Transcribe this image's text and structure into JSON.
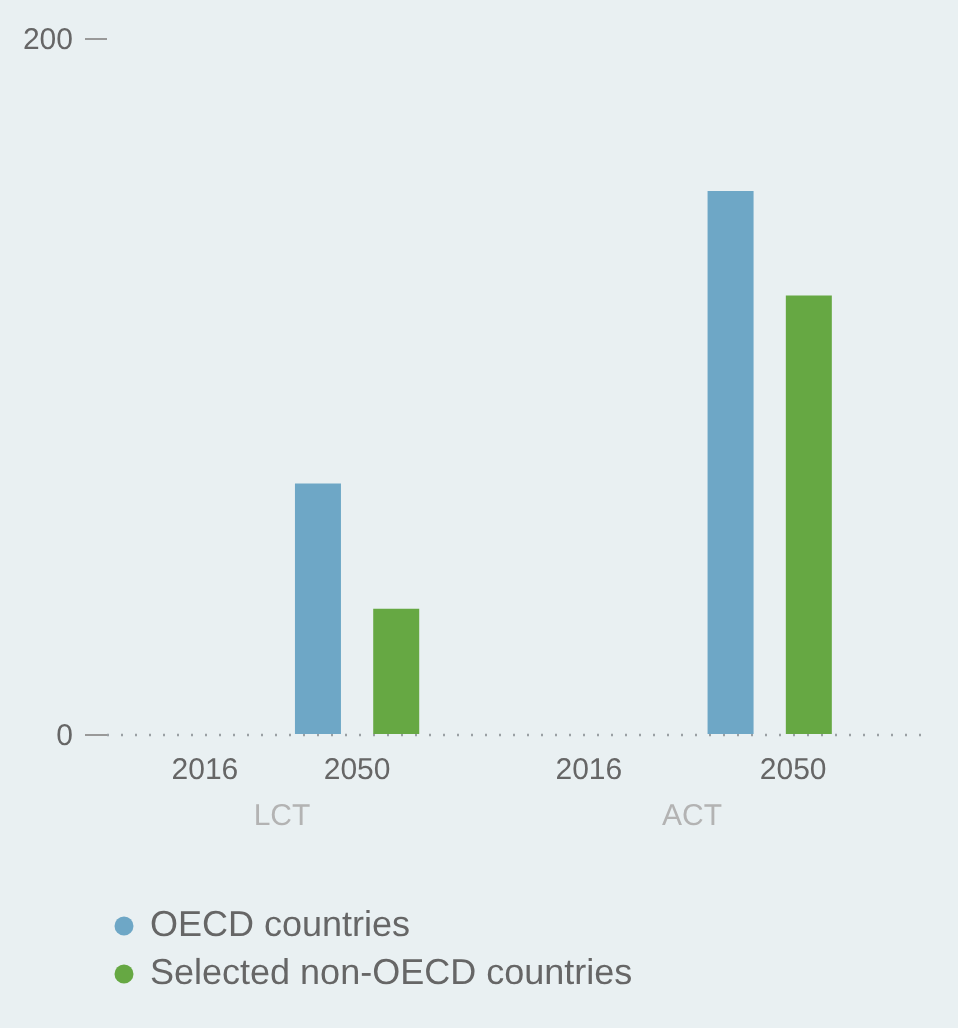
{
  "chart_data": [
    {
      "type": "bar",
      "xlabel": "LCT",
      "categories": [
        "2016",
        "2050"
      ],
      "ylim": [
        0,
        200
      ],
      "yticks": [
        0,
        200
      ],
      "grid": false,
      "legend": "bottom",
      "series": [
        {
          "name": "OECD countries",
          "color": "#6ea7c6",
          "values": [
            null,
            72
          ]
        },
        {
          "name": "Selected non-OECD countries",
          "color": "#66a843",
          "values": [
            null,
            36
          ]
        }
      ]
    },
    {
      "type": "bar",
      "xlabel": "ACT",
      "categories": [
        "2016",
        "2050"
      ],
      "ylim": [
        0,
        200
      ],
      "grid": false,
      "legend": "bottom",
      "tick_labels": "x",
      "series": [
        {
          "name": "OECD countries",
          "color": "#6ea7c6",
          "values": [
            null,
            156
          ]
        },
        {
          "name": "Selected non-OECD countries",
          "color": "#66a843",
          "values": [
            null,
            126
          ]
        }
      ]
    }
  ]
}
